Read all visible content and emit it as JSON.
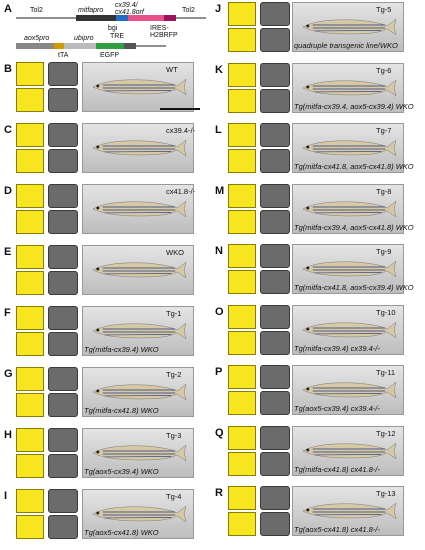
{
  "panelA": {
    "label": "A",
    "top_row": {
      "labels": [
        "Tol2",
        "mitfapro",
        "cx39.4/\ncx41.8orf",
        "Tol2"
      ],
      "sub_labels": [
        "bgi",
        "TRE",
        "IRES-\nH2BRFP"
      ]
    },
    "bottom_row": {
      "labels": [
        "aox5pro",
        "ubipro",
        "tTA",
        "EGFP"
      ]
    }
  },
  "scale_bar_label": "",
  "left_panels": [
    {
      "label": "B",
      "caption": "",
      "tag": "WT"
    },
    {
      "label": "C",
      "caption": "",
      "tag": "cx39.4-/-"
    },
    {
      "label": "D",
      "caption": "",
      "tag": "cx41.8-/-"
    },
    {
      "label": "E",
      "caption": "",
      "tag": "WKO"
    },
    {
      "label": "F",
      "caption": "Tg(mitfa-cx39.4) WKO",
      "tag": "Tg-1"
    },
    {
      "label": "G",
      "caption": "Tg(mitfa-cx41.8) WKO",
      "tag": "Tg-2"
    },
    {
      "label": "H",
      "caption": "Tg(aox5-cx39.4) WKO",
      "tag": "Tg-3"
    },
    {
      "label": "I",
      "caption": "Tg(aox5-cx41.8) WKO",
      "tag": "Tg-4"
    }
  ],
  "right_panels": [
    {
      "label": "J",
      "caption": "quadruple transgenic line/WKO",
      "tag": "Tg-5"
    },
    {
      "label": "K",
      "caption": "Tg(mitfa-cx39.4, aox5-cx39.4) WKO",
      "tag": "Tg-6"
    },
    {
      "label": "L",
      "caption": "Tg(mitfa-cx41.8, aox5-cx41.8) WKO",
      "tag": "Tg-7"
    },
    {
      "label": "M",
      "caption": "Tg(mitfa-cx39.4, aox5-cx41.8) WKO",
      "tag": "Tg-8"
    },
    {
      "label": "N",
      "caption": "Tg(mitfa-cx41.8, aox5-cx39.4) WKO",
      "tag": "Tg-9"
    },
    {
      "label": "O",
      "caption": "Tg(mitfa-cx39.4) cx39.4-/-",
      "tag": "Tg-10"
    },
    {
      "label": "P",
      "caption": "Tg(aox5-cx39.4) cx39.4-/-",
      "tag": "Tg-11"
    },
    {
      "label": "Q",
      "caption": "Tg(mitfa-cx41.8) cx41.8-/-",
      "tag": "Tg-12"
    },
    {
      "label": "R",
      "caption": "Tg(aox5-cx41.8) cx41.8-/-",
      "tag": "Tg-13"
    }
  ],
  "colors": {
    "xanthophore": "#f7e51f",
    "melanophore": "#6b6b6b",
    "cx39_4": "#d0121b",
    "cx41_8": "#14a83a"
  }
}
